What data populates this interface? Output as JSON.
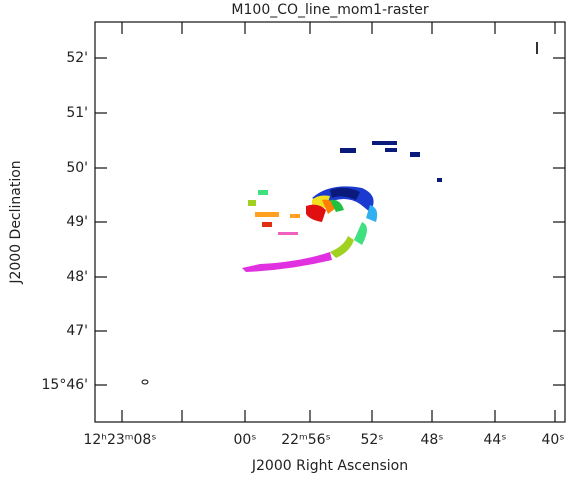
{
  "plot": {
    "title": "M100_CO_line_mom1-raster",
    "x_label": "J2000 Right Ascension",
    "y_label": "J2000 Declination",
    "x_ticks": [
      "12ʰ23ᵐ08ˢ",
      "00ˢ",
      "22ᵐ56ˢ",
      "52ˢ",
      "48ˢ",
      "44ˢ",
      "40ˢ"
    ],
    "y_ticks": [
      "52'",
      "51'",
      "50'",
      "49'",
      "48'",
      "47'",
      "15°46'"
    ]
  }
}
